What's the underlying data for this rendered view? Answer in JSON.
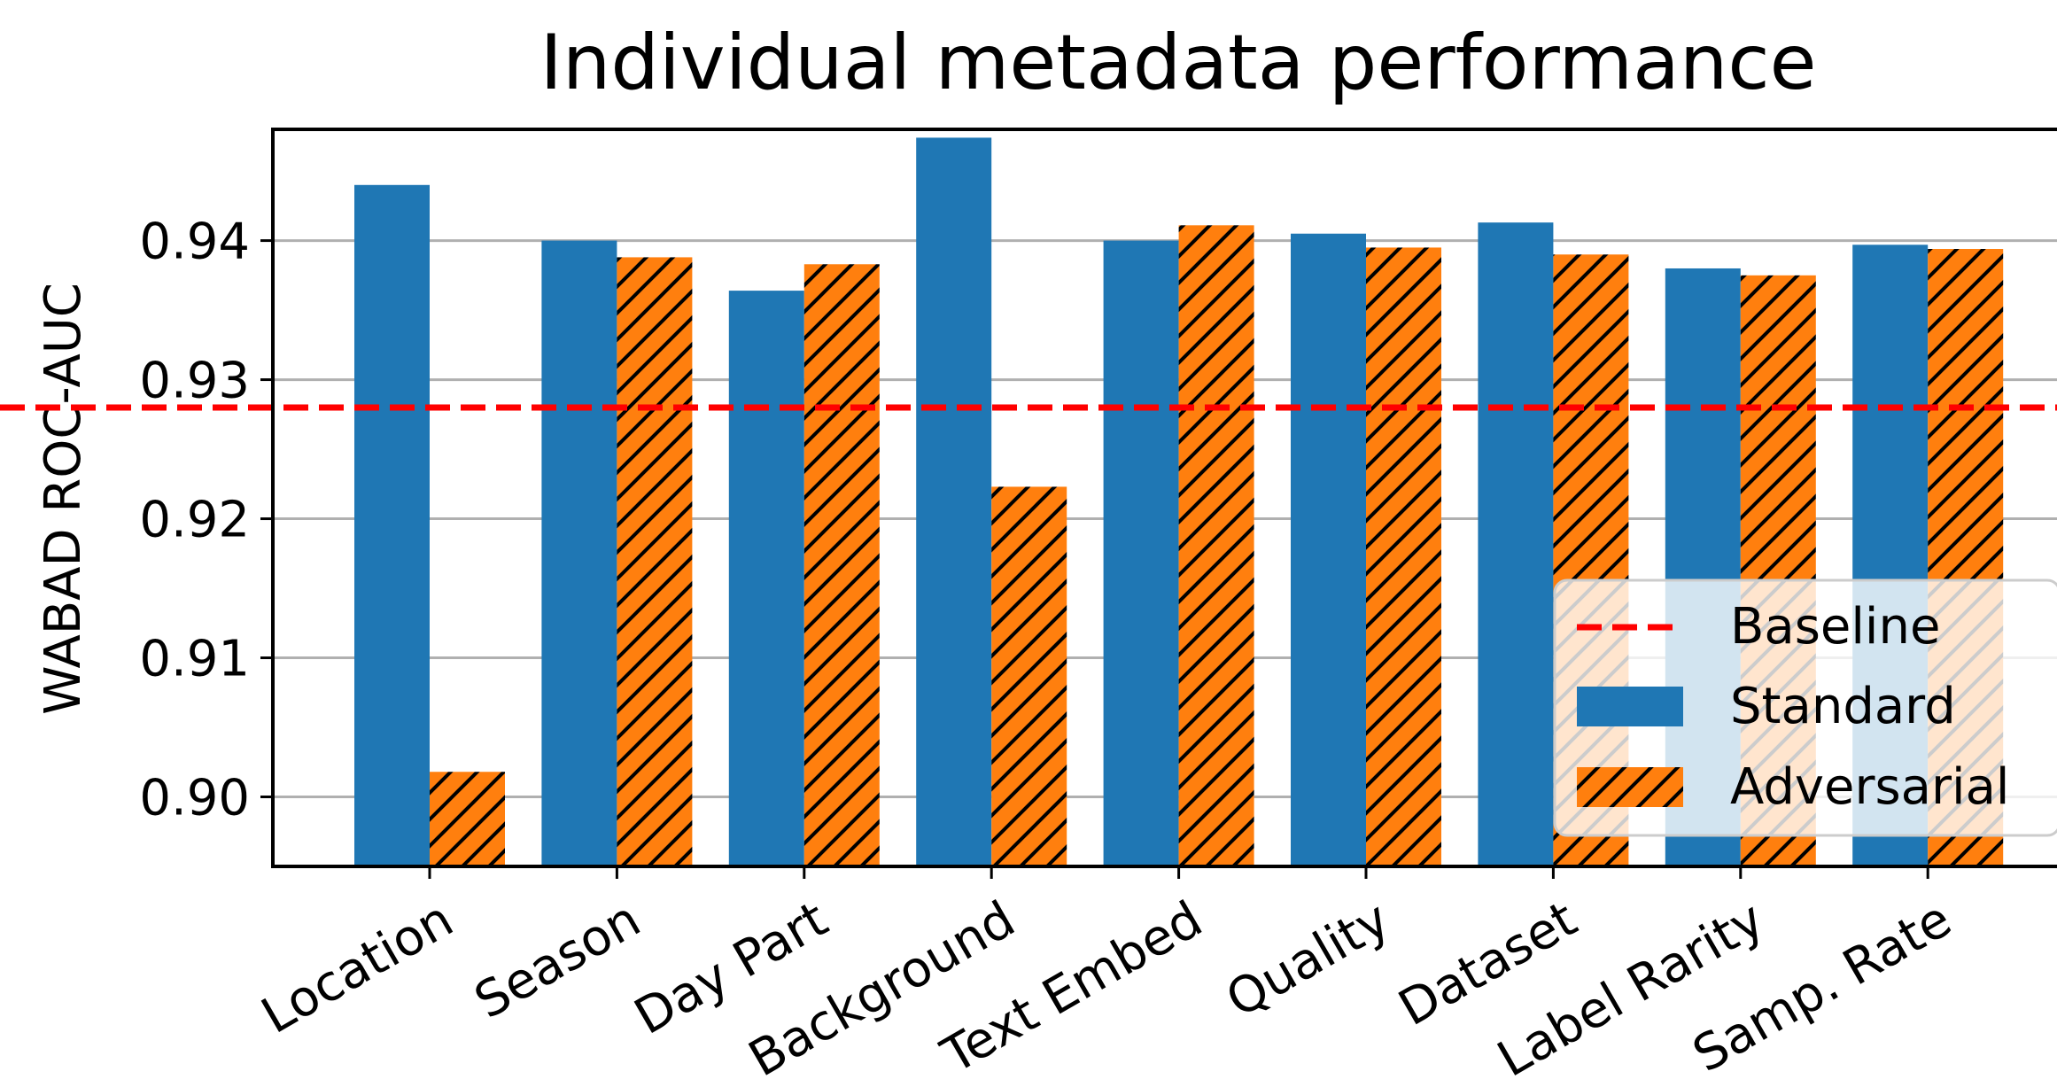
{
  "chart_data": {
    "type": "bar",
    "title": "Individual metadata performance",
    "xlabel": "",
    "ylabel": "WABAD ROC-AUC",
    "categories": [
      "Location",
      "Season",
      "Day Part",
      "Background",
      "Text Embed",
      "Quality",
      "Dataset",
      "Label Rarity",
      "Samp. Rate"
    ],
    "series": [
      {
        "name": "Standard",
        "values": [
          0.944,
          0.94,
          0.9364,
          0.9474,
          0.94,
          0.9405,
          0.9413,
          0.938,
          0.9397
        ]
      },
      {
        "name": "Adversarial",
        "values": [
          0.9018,
          0.9388,
          0.9383,
          0.9223,
          0.9411,
          0.9395,
          0.939,
          0.9375,
          0.9394
        ]
      }
    ],
    "baseline": {
      "name": "Baseline",
      "value": 0.928
    },
    "ylim": [
      0.895,
      0.948
    ],
    "yticks": [
      "0.90",
      "0.91",
      "0.92",
      "0.93",
      "0.94"
    ],
    "grid": "horizontal",
    "legend_position": "lower-right",
    "colors": {
      "standard": "#1f77b4",
      "adversarial": "#ff7f0e",
      "baseline": "#ff0000",
      "grid": "#b0b0b0",
      "hatch": "#000000"
    }
  }
}
